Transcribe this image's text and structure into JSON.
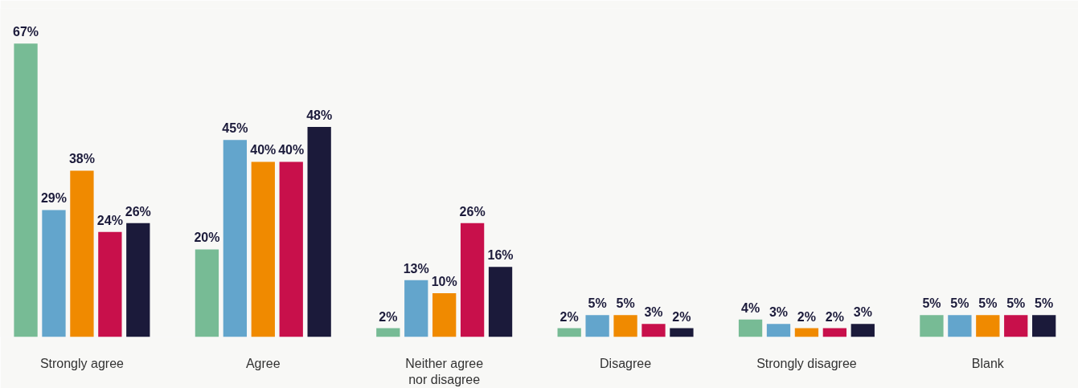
{
  "chart_data": {
    "type": "bar",
    "grid": false,
    "categories": [
      "Strongly agree",
      "Agree",
      "Neither agree nor disagree",
      "Disagree",
      "Strongly disagree",
      "Blank"
    ],
    "series": [
      {
        "color": "#77bb95",
        "values": [
          67,
          20,
          2,
          2,
          4,
          5
        ],
        "value_labels": [
          "67%",
          "20%",
          "2%",
          "2%",
          "4%",
          "5%"
        ]
      },
      {
        "color": "#63a5cc",
        "values": [
          29,
          45,
          13,
          5,
          3,
          5
        ],
        "value_labels": [
          "29%",
          "45%",
          "13%",
          "5%",
          "3%",
          "5%"
        ]
      },
      {
        "color": "#f08a00",
        "values": [
          38,
          40,
          10,
          5,
          2,
          5
        ],
        "value_labels": [
          "38%",
          "40%",
          "10%",
          "5%",
          "2%",
          "5%"
        ]
      },
      {
        "color": "#c8104b",
        "values": [
          24,
          40,
          26,
          3,
          2,
          5
        ],
        "value_labels": [
          "24%",
          "40%",
          "26%",
          "3%",
          "2%",
          "5%"
        ]
      },
      {
        "color": "#1b1a3a",
        "values": [
          26,
          48,
          16,
          2,
          3,
          5
        ],
        "value_labels": [
          "26%",
          "48%",
          "16%",
          "2%",
          "3%",
          "5%"
        ]
      }
    ]
  }
}
